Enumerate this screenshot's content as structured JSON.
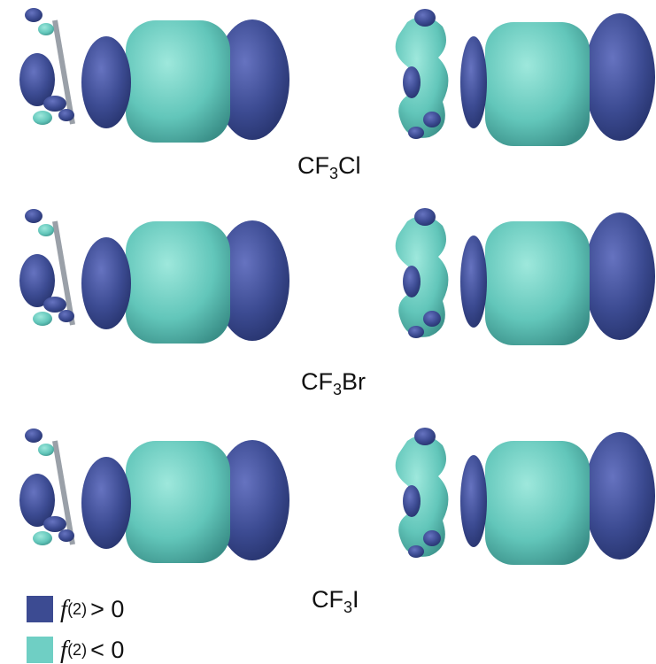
{
  "molecules": [
    {
      "formula": {
        "base": "CF",
        "sub": "3",
        "halogen": "Cl"
      }
    },
    {
      "formula": {
        "base": "CF",
        "sub": "3",
        "halogen": "Br"
      }
    },
    {
      "formula": {
        "base": "CF",
        "sub": "3",
        "halogen": "I"
      }
    }
  ],
  "legend": [
    {
      "symbol": "f",
      "sup": "(2)",
      "relation": "> 0"
    },
    {
      "symbol": "f",
      "sup": "(2)",
      "relation": "< 0"
    }
  ]
}
